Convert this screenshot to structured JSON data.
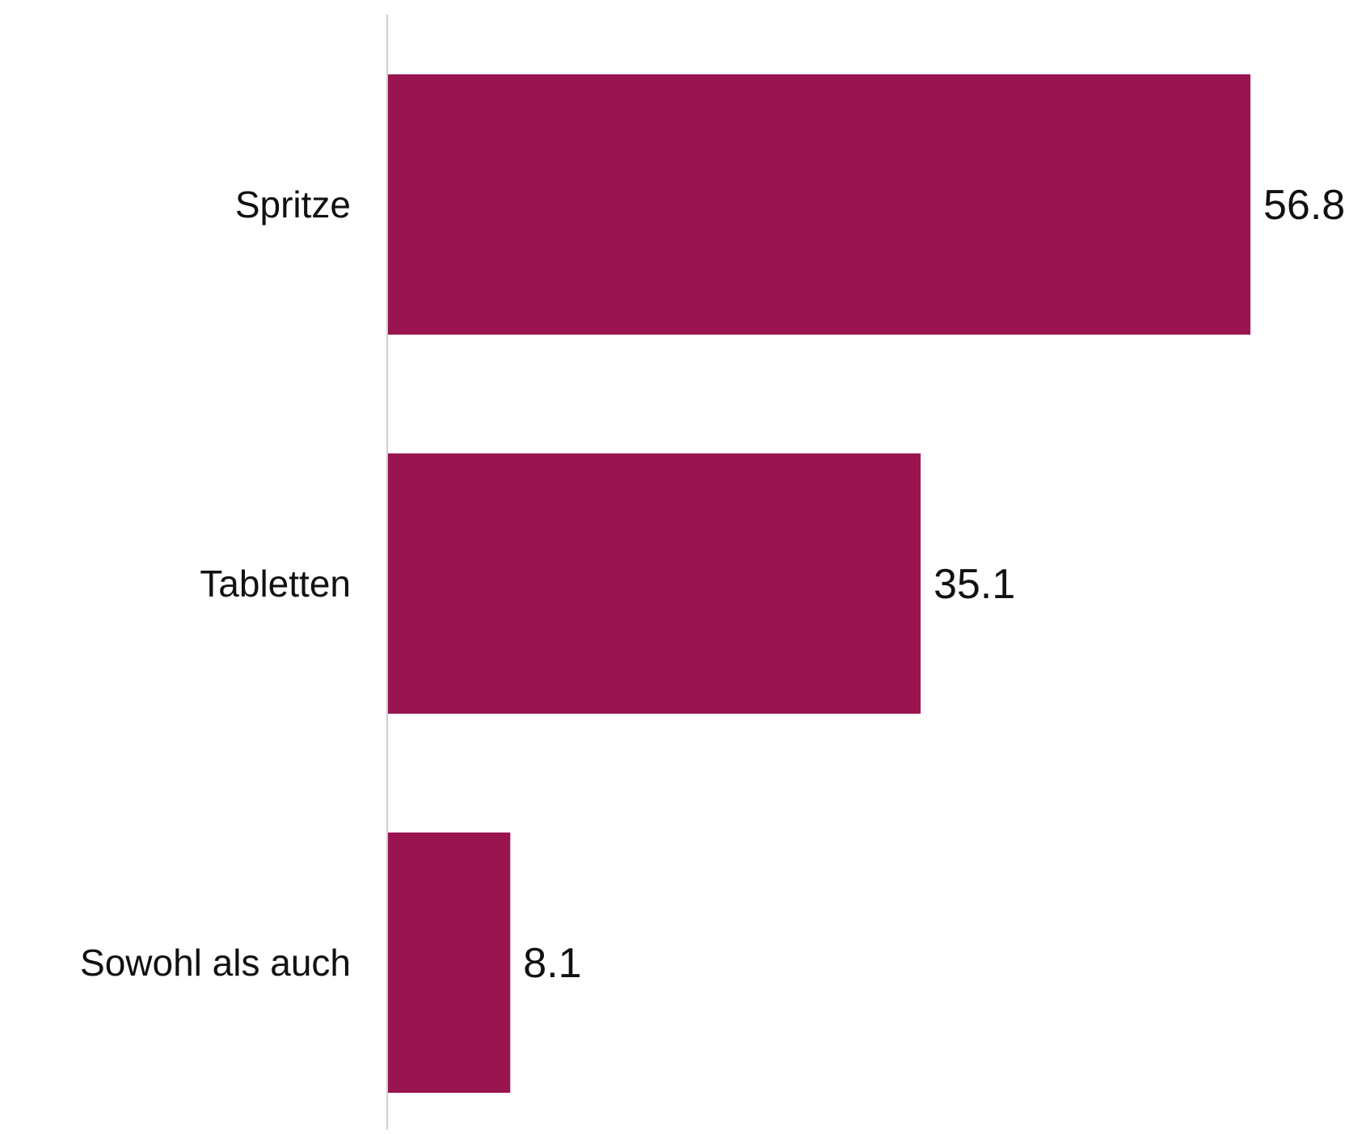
{
  "chart_data": {
    "type": "bar",
    "orientation": "horizontal",
    "categories": [
      "Spritze",
      "Tabletten",
      "Sowohl als auch"
    ],
    "values": [
      56.8,
      35.1,
      8.1
    ],
    "value_labels": [
      "56.8",
      "35.1",
      "8.1"
    ],
    "title": "",
    "xlabel": "",
    "ylabel": "",
    "xlim": [
      0,
      56.8
    ],
    "grid": false,
    "legend": "none",
    "colors": {
      "bar": "#9a1550",
      "axis": "#d0d0d0",
      "text": "#111111"
    }
  }
}
